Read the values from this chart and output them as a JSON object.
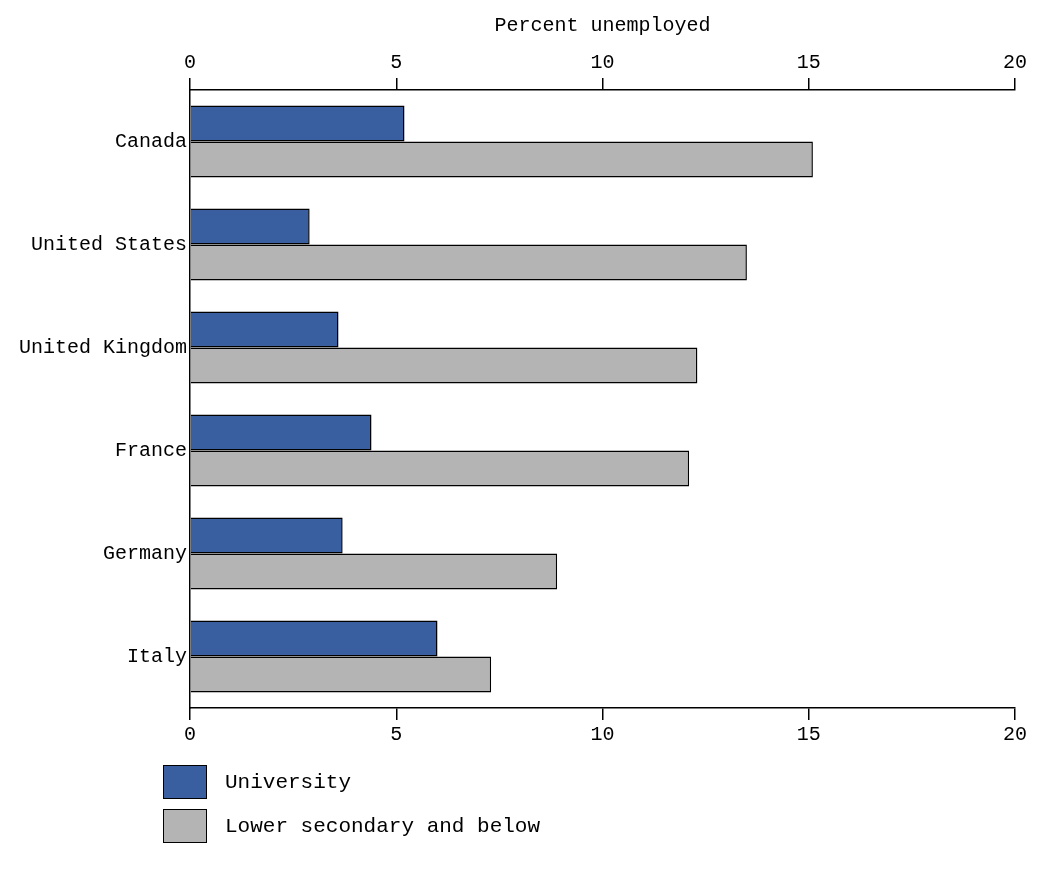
{
  "chart_data": {
    "type": "bar",
    "orientation": "horizontal",
    "x2label": "Percent unemployed",
    "categories": [
      "Canada",
      "United States",
      "United Kingdom",
      "France",
      "Germany",
      "Italy"
    ],
    "series": [
      {
        "name": "University",
        "color": "#3a5fa0",
        "values": [
          5.2,
          2.9,
          3.6,
          4.4,
          3.7,
          6.0
        ]
      },
      {
        "name": "Lower secondary and below",
        "color": "#b4b4b4",
        "values": [
          15.1,
          13.5,
          12.3,
          12.1,
          8.9,
          7.3
        ]
      }
    ],
    "xlim": [
      0,
      20
    ],
    "xticks": [
      0,
      5,
      10,
      15,
      20
    ],
    "x2lim": [
      0,
      20
    ],
    "x2ticks": [
      0,
      5,
      10,
      15,
      20
    ],
    "grid": false,
    "legend": "bottom"
  }
}
